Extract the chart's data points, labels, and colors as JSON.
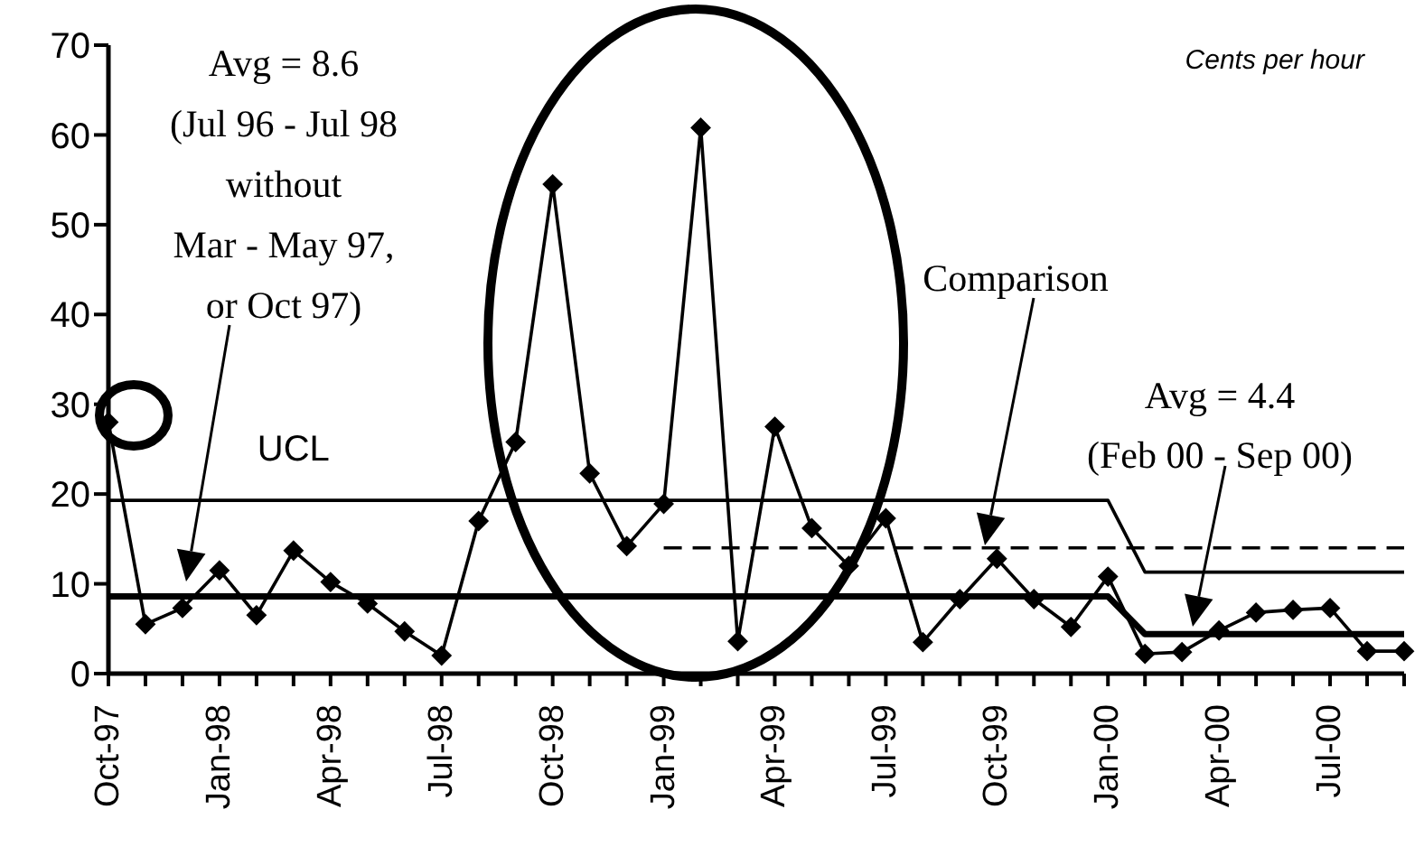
{
  "chart_data": {
    "type": "line",
    "ylabel": "Cents per hour",
    "categories": [
      "Oct-97",
      null,
      null,
      "Jan-98",
      null,
      null,
      "Apr-98",
      null,
      null,
      "Jul-98",
      null,
      null,
      "Oct-98",
      null,
      null,
      "Jan-99",
      null,
      null,
      "Apr-99",
      null,
      null,
      "Jul-99",
      null,
      null,
      "Oct-99",
      null,
      null,
      "Jan-00",
      null,
      null,
      "Apr-00",
      null,
      null,
      "Jul-00",
      null,
      null
    ],
    "series": [
      {
        "color": "#000000",
        "marker": "diamond",
        "values": [
          28,
          5.5,
          7.3,
          11.5,
          6.5,
          13.7,
          10.2,
          7.8,
          4.7,
          2,
          17,
          25.8,
          54.5,
          22.3,
          14.2,
          18.9,
          60.8,
          3.6,
          27.5,
          16.2,
          12,
          17.3,
          3.5,
          8.3,
          12.8,
          8.3,
          5.2,
          10.8,
          2.2,
          2.4,
          4.8,
          6.8,
          7.1,
          7.3,
          2.5,
          2.5
        ]
      },
      {
        "name": "UCL",
        "color": "#000000",
        "marker": "none",
        "values": [
          19.3,
          19.3,
          19.3,
          19.3,
          19.3,
          19.3,
          19.3,
          19.3,
          19.3,
          19.3,
          19.3,
          19.3,
          19.3,
          19.3,
          19.3,
          19.3,
          19.3,
          19.3,
          19.3,
          19.3,
          19.3,
          19.3,
          19.3,
          19.3,
          19.3,
          19.3,
          19.3,
          19.3,
          11.3,
          11.3,
          11.3,
          11.3,
          11.3,
          11.3,
          11.3,
          11.3
        ]
      },
      {
        "color": "#000000",
        "marker": "none",
        "values": [
          8.6,
          8.6,
          8.6,
          8.6,
          8.6,
          8.6,
          8.6,
          8.6,
          8.6,
          8.6,
          8.6,
          8.6,
          8.6,
          8.6,
          8.6,
          8.6,
          8.6,
          8.6,
          8.6,
          8.6,
          8.6,
          8.6,
          8.6,
          8.6,
          8.6,
          8.6,
          8.6,
          8.6,
          4.4,
          4.4,
          4.4,
          4.4,
          4.4,
          4.4,
          4.4,
          4.4
        ]
      },
      {
        "color": "#000000",
        "marker": "none",
        "line_style": "dashed",
        "values": [
          null,
          null,
          null,
          null,
          null,
          null,
          null,
          null,
          null,
          null,
          null,
          null,
          null,
          null,
          null,
          14,
          14,
          14,
          14,
          14,
          14,
          14,
          14,
          14,
          14,
          14,
          14,
          14,
          14,
          14,
          14,
          14,
          14,
          14,
          14,
          14
        ]
      }
    ],
    "ylim": [
      0,
      70
    ],
    "yticks": [
      0,
      10,
      20,
      30,
      40,
      50,
      60,
      70
    ],
    "annotations": [
      "Avg = 8.6\n(Jul 96 - Jul 98\nwithout\nMar - May 97,\nor Oct 97)",
      "Comparison",
      "Avg = 4.4\n(Feb 00 - Sep 00)"
    ]
  }
}
